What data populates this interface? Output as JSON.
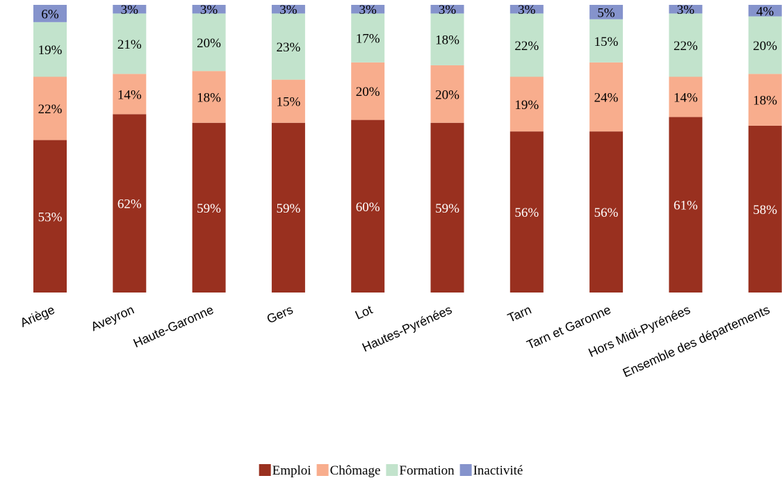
{
  "chart_data": {
    "type": "bar",
    "stacked": true,
    "percent": true,
    "categories": [
      "Ariège",
      "Aveyron",
      "Haute-Garonne",
      "Gers",
      "Lot",
      "Hautes-Pyrénées",
      "Tarn",
      "Tarn et Garonne",
      "Hors Midi-Pyrénées",
      "Ensemble des départements"
    ],
    "series": [
      {
        "name": "Emploi",
        "color": "#99301f",
        "label_color": "#ffffff",
        "values": [
          53,
          62,
          59,
          59,
          60,
          59,
          56,
          56,
          61,
          58
        ]
      },
      {
        "name": "Chômage",
        "color": "#f8ad8d",
        "label_color": "#000000",
        "values": [
          22,
          14,
          18,
          15,
          20,
          20,
          19,
          24,
          14,
          18
        ]
      },
      {
        "name": "Formation",
        "color": "#c2e3cc",
        "label_color": "#000000",
        "values": [
          19,
          21,
          20,
          23,
          17,
          18,
          22,
          15,
          22,
          20
        ]
      },
      {
        "name": "Inactivité",
        "color": "#8593cc",
        "label_color": "#000000",
        "values": [
          6,
          3,
          3,
          3,
          3,
          3,
          3,
          5,
          3,
          4
        ]
      }
    ],
    "legend_position": "bottom",
    "grid": false,
    "xlabel": "",
    "ylabel": ""
  }
}
